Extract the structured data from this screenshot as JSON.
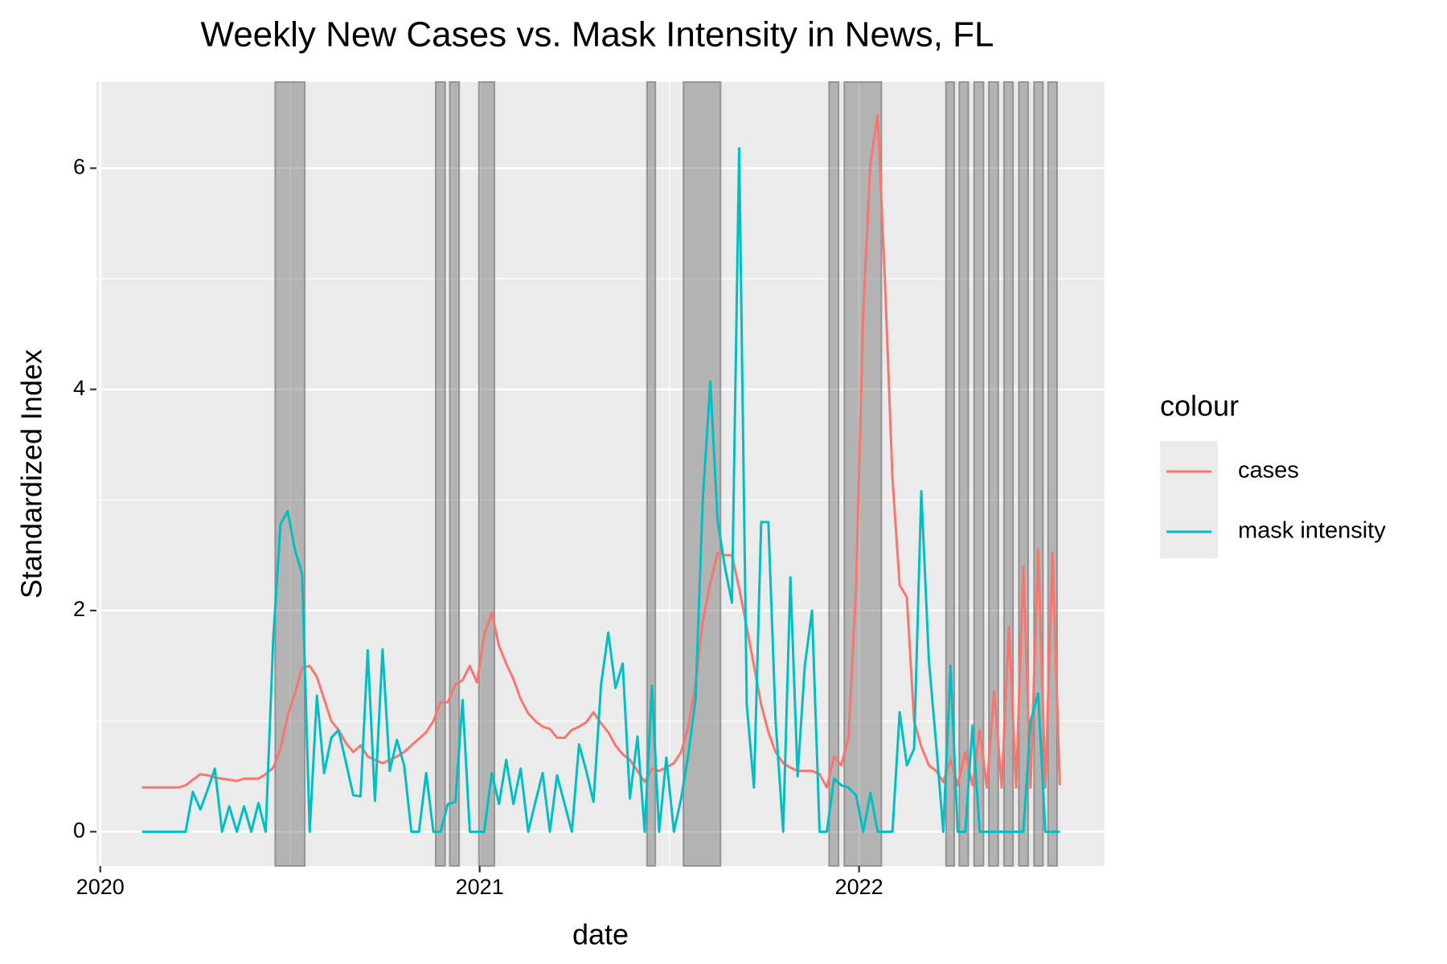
{
  "chart_data": {
    "type": "line",
    "title": "Weekly New Cases vs. Mask Intensity in News, FL",
    "x_label": "date",
    "y_label": "Standardized Index",
    "legend_title": "colour",
    "legend_position": "right",
    "grid": true,
    "xlim": [
      2019.99,
      2022.647
    ],
    "xticks": [
      2020,
      2021,
      2022
    ],
    "ylim": [
      -0.31,
      6.78
    ],
    "yticks": [
      0,
      2,
      4,
      6
    ],
    "shaded_x": [
      [
        2020.461,
        2020.539
      ],
      [
        2020.884,
        2020.909
      ],
      [
        2020.921,
        2020.946
      ],
      [
        2020.998,
        2021.039
      ],
      [
        2021.441,
        2021.463
      ],
      [
        2021.537,
        2021.635
      ],
      [
        2021.921,
        2021.946
      ],
      [
        2021.961,
        2022.059
      ],
      [
        2022.229,
        2022.251
      ],
      [
        2022.264,
        2022.288
      ],
      [
        2022.303,
        2022.328
      ],
      [
        2022.342,
        2022.367
      ],
      [
        2022.382,
        2022.406
      ],
      [
        2022.421,
        2022.446
      ],
      [
        2022.461,
        2022.485
      ],
      [
        2022.498,
        2022.522
      ]
    ],
    "x": [
      2020.11,
      2020.129,
      2020.148,
      2020.168,
      2020.187,
      2020.206,
      2020.225,
      2020.244,
      2020.264,
      2020.283,
      2020.302,
      2020.321,
      2020.34,
      2020.36,
      2020.379,
      2020.398,
      2020.417,
      2020.436,
      2020.456,
      2020.475,
      2020.494,
      2020.513,
      2020.532,
      2020.552,
      2020.571,
      2020.59,
      2020.609,
      2020.628,
      2020.648,
      2020.667,
      2020.686,
      2020.705,
      2020.724,
      2020.744,
      2020.763,
      2020.782,
      2020.801,
      2020.82,
      2020.84,
      2020.859,
      2020.878,
      2020.897,
      2020.916,
      2020.936,
      2020.955,
      2020.974,
      2020.993,
      2021.012,
      2021.032,
      2021.051,
      2021.07,
      2021.089,
      2021.108,
      2021.128,
      2021.147,
      2021.166,
      2021.185,
      2021.204,
      2021.224,
      2021.243,
      2021.262,
      2021.281,
      2021.3,
      2021.32,
      2021.339,
      2021.358,
      2021.377,
      2021.396,
      2021.416,
      2021.435,
      2021.454,
      2021.473,
      2021.492,
      2021.512,
      2021.531,
      2021.55,
      2021.569,
      2021.588,
      2021.608,
      2021.627,
      2021.646,
      2021.665,
      2021.684,
      2021.704,
      2021.723,
      2021.742,
      2021.761,
      2021.78,
      2021.8,
      2021.819,
      2021.838,
      2021.857,
      2021.876,
      2021.896,
      2021.915,
      2021.934,
      2021.953,
      2021.972,
      2021.992,
      2022.011,
      2022.03,
      2022.049,
      2022.068,
      2022.088,
      2022.107,
      2022.126,
      2022.145,
      2022.164,
      2022.184,
      2022.203,
      2022.222,
      2022.241,
      2022.26,
      2022.28,
      2022.299,
      2022.318,
      2022.337,
      2022.356,
      2022.376,
      2022.395,
      2022.414,
      2022.433,
      2022.452,
      2022.472,
      2022.491,
      2022.51,
      2022.529
    ],
    "series": [
      {
        "name": "cases",
        "color": "#F8766D",
        "values": [
          0.4,
          0.4,
          0.4,
          0.4,
          0.4,
          0.4,
          0.42,
          0.47,
          0.52,
          0.51,
          0.49,
          0.48,
          0.47,
          0.46,
          0.48,
          0.48,
          0.48,
          0.52,
          0.58,
          0.75,
          1.05,
          1.25,
          1.48,
          1.5,
          1.4,
          1.2,
          1.0,
          0.92,
          0.8,
          0.72,
          0.78,
          0.68,
          0.65,
          0.62,
          0.65,
          0.68,
          0.72,
          0.78,
          0.84,
          0.9,
          1.0,
          1.17,
          1.17,
          1.33,
          1.37,
          1.5,
          1.35,
          1.78,
          1.98,
          1.68,
          1.52,
          1.38,
          1.2,
          1.07,
          1.0,
          0.95,
          0.93,
          0.85,
          0.85,
          0.92,
          0.95,
          0.99,
          1.08,
          0.98,
          0.9,
          0.78,
          0.7,
          0.65,
          0.55,
          0.45,
          0.57,
          0.55,
          0.58,
          0.62,
          0.72,
          0.95,
          1.35,
          1.9,
          2.25,
          2.52,
          2.5,
          2.5,
          2.2,
          1.85,
          1.5,
          1.15,
          0.9,
          0.72,
          0.62,
          0.58,
          0.55,
          0.55,
          0.55,
          0.52,
          0.4,
          0.68,
          0.6,
          0.85,
          2.2,
          4.7,
          6.05,
          6.48,
          5.0,
          3.2,
          2.23,
          2.12,
          1.0,
          0.77,
          0.6,
          0.55,
          0.45,
          0.65,
          0.42,
          0.72,
          0.42,
          0.92,
          0.4,
          1.27,
          0.4,
          1.85,
          0.4,
          2.4,
          0.4,
          2.55,
          0.4,
          2.52,
          0.42
        ]
      },
      {
        "name": "mask intensity",
        "color": "#00BFC4",
        "values": [
          0,
          0,
          0,
          0,
          0,
          0,
          0,
          0.36,
          0.2,
          0.38,
          0.57,
          0,
          0.23,
          0,
          0.23,
          0,
          0.26,
          0,
          1.75,
          2.78,
          2.9,
          2.55,
          2.33,
          0,
          1.23,
          0.53,
          0.85,
          0.92,
          0.62,
          0.33,
          0.32,
          1.64,
          0.28,
          1.65,
          0.55,
          0.83,
          0.6,
          0,
          0,
          0.53,
          0,
          0,
          0.25,
          0.27,
          1.19,
          0,
          0,
          0,
          0.53,
          0.25,
          0.65,
          0.25,
          0.57,
          0,
          0.27,
          0.53,
          0,
          0.51,
          0.25,
          0,
          0.79,
          0.55,
          0.27,
          1.33,
          1.8,
          1.3,
          1.52,
          0.3,
          0.86,
          0,
          1.32,
          0,
          0.67,
          0,
          0.3,
          0.7,
          1.2,
          3.0,
          4.07,
          2.82,
          2.4,
          2.07,
          6.18,
          1.15,
          0.4,
          2.8,
          2.8,
          1.0,
          0,
          2.3,
          0.5,
          1.5,
          2.0,
          0,
          0,
          0.48,
          0.42,
          0.4,
          0.33,
          0,
          0.35,
          0,
          0,
          0,
          1.08,
          0.6,
          0.75,
          3.08,
          1.55,
          0.8,
          0,
          1.5,
          0,
          0,
          0.96,
          0,
          0,
          0,
          0,
          0,
          0,
          0,
          1.0,
          1.25,
          0,
          0,
          0
        ]
      }
    ]
  }
}
